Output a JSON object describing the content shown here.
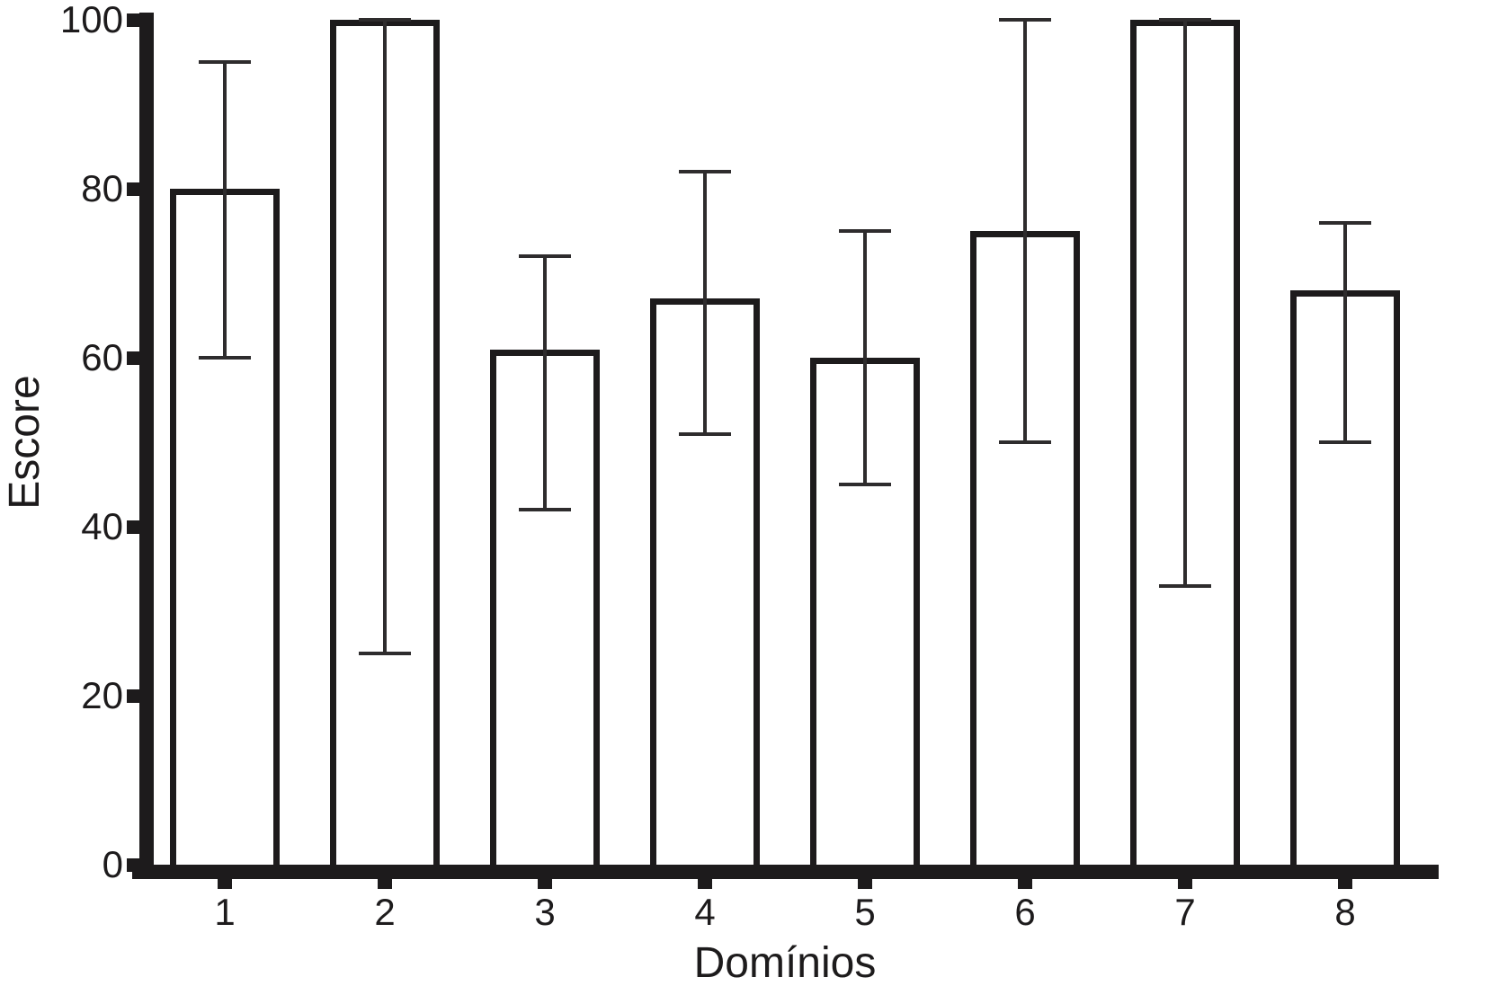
{
  "figure": {
    "background": "#ffffff",
    "line_color": "#1d1b1c",
    "whisker_color": "#2e2c2d",
    "bar_fill": "#ffffff"
  },
  "chart_data": {
    "type": "bar",
    "title": "",
    "xlabel": "Domínios",
    "ylabel": "Escore",
    "categories": [
      "1",
      "2",
      "3",
      "4",
      "5",
      "6",
      "7",
      "8"
    ],
    "values": [
      80,
      100,
      61,
      67,
      60,
      75,
      100,
      68
    ],
    "error_low": [
      60,
      25,
      42,
      51,
      45,
      50,
      33,
      50
    ],
    "error_high": [
      95,
      100,
      72,
      82,
      75,
      100,
      100,
      76
    ],
    "ylim": [
      0,
      100
    ],
    "yticks": [
      0,
      20,
      40,
      60,
      80,
      100
    ],
    "grid": false,
    "legend": null,
    "bar_style": "white fill, thick black outline, black T-capped error bars"
  }
}
